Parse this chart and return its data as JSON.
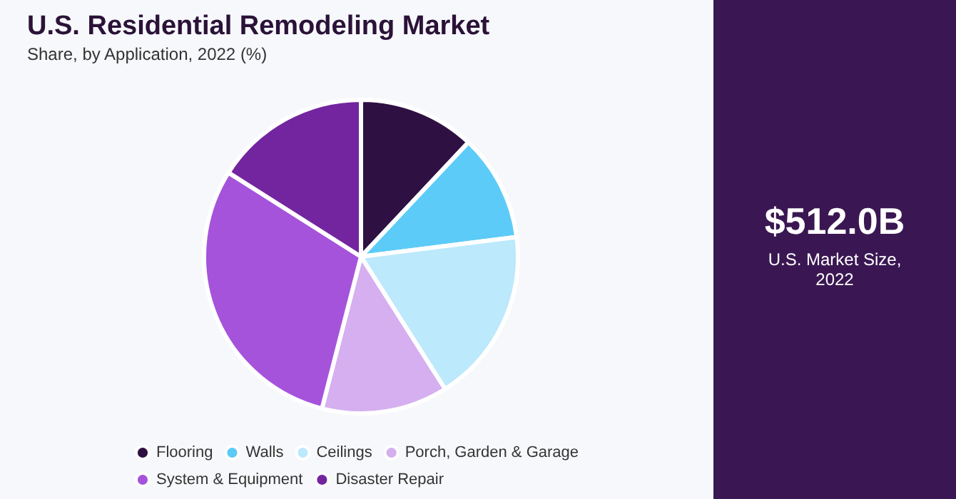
{
  "chart_data": {
    "type": "pie",
    "title": "U.S. Residential Remodeling Market",
    "subtitle": "Share, by Application, 2022 (%)",
    "categories": [
      "Flooring",
      "Walls",
      "Ceilings",
      "Porch, Garden & Garage",
      "System & Equipment",
      "Disaster Repair"
    ],
    "values": [
      12,
      11,
      18,
      13,
      30,
      16
    ],
    "colors": [
      "#2e1043",
      "#5ccbf7",
      "#bce9fb",
      "#d5aff0",
      "#a653dc",
      "#73259f"
    ],
    "legend": "bottom",
    "annotations": [
      "$512.0B",
      "U.S. Market Size, 2022"
    ]
  }
}
